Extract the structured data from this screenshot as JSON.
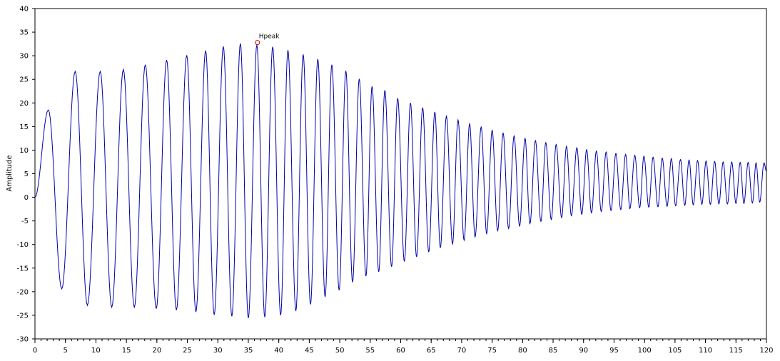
{
  "chart_data": {
    "type": "line",
    "title": "",
    "xlabel": "",
    "ylabel": "Amplitude",
    "xlim": [
      0,
      120
    ],
    "ylim": [
      -30,
      40
    ],
    "x_ticks": [
      0,
      5,
      10,
      15,
      20,
      25,
      30,
      35,
      40,
      45,
      50,
      55,
      60,
      65,
      70,
      75,
      80,
      85,
      90,
      95,
      100,
      105,
      110,
      115,
      120
    ],
    "y_ticks": [
      -30,
      -25,
      -20,
      -15,
      -10,
      -5,
      0,
      5,
      10,
      15,
      20,
      25,
      30,
      35,
      40
    ],
    "grid": false,
    "line_color": "#0000aa",
    "marker_color": "#cc0000",
    "series": [
      {
        "values_description_free": true,
        "peaks": [
          [
            2.2,
            18.5
          ],
          [
            6.6,
            26.7
          ],
          [
            10.7,
            26.7
          ],
          [
            14.5,
            27.1
          ],
          [
            18.1,
            28.1
          ],
          [
            21.6,
            29.1
          ],
          [
            24.9,
            30.1
          ],
          [
            28.0,
            31.1
          ],
          [
            30.9,
            32.0
          ],
          [
            33.7,
            32.6
          ],
          [
            36.4,
            32.3
          ],
          [
            39.0,
            31.9
          ],
          [
            41.5,
            31.2
          ],
          [
            44.0,
            30.3
          ],
          [
            46.4,
            29.3
          ],
          [
            48.7,
            28.1
          ],
          [
            51.0,
            26.8
          ],
          [
            53.2,
            25.1
          ],
          [
            55.3,
            23.5
          ],
          [
            57.4,
            22.7
          ],
          [
            59.5,
            21.0
          ],
          [
            61.6,
            20.0
          ],
          [
            63.6,
            19.0
          ],
          [
            65.6,
            18.1
          ],
          [
            67.5,
            17.2
          ],
          [
            69.4,
            16.4
          ],
          [
            71.3,
            15.6
          ],
          [
            73.2,
            14.9
          ],
          [
            75.0,
            14.2
          ],
          [
            76.8,
            13.6
          ],
          [
            78.6,
            13.0
          ],
          [
            80.4,
            12.5
          ],
          [
            82.1,
            12.0
          ],
          [
            83.8,
            11.6
          ],
          [
            85.5,
            11.2
          ],
          [
            87.2,
            10.8
          ],
          [
            88.9,
            10.5
          ],
          [
            90.5,
            10.1
          ],
          [
            92.1,
            9.8
          ],
          [
            93.7,
            9.6
          ],
          [
            95.3,
            9.3
          ],
          [
            96.9,
            9.1
          ],
          [
            98.4,
            8.9
          ],
          [
            99.9,
            8.7
          ],
          [
            101.4,
            8.5
          ],
          [
            102.9,
            8.3
          ],
          [
            104.4,
            8.2
          ],
          [
            105.9,
            8.0
          ],
          [
            107.3,
            7.9
          ],
          [
            108.7,
            7.8
          ],
          [
            110.1,
            7.7
          ],
          [
            111.5,
            7.6
          ],
          [
            112.9,
            7.5
          ],
          [
            114.3,
            7.5
          ],
          [
            115.7,
            7.4
          ],
          [
            117.0,
            7.4
          ],
          [
            118.3,
            7.3
          ],
          [
            119.6,
            7.3
          ]
        ],
        "troughs": [
          [
            0.0,
            0.0
          ],
          [
            4.4,
            -19.4
          ],
          [
            8.6,
            -22.9
          ],
          [
            12.6,
            -23.3
          ],
          [
            16.3,
            -23.3
          ],
          [
            19.9,
            -23.6
          ],
          [
            23.2,
            -23.9
          ],
          [
            26.4,
            -24.3
          ],
          [
            29.4,
            -24.9
          ],
          [
            32.3,
            -25.2
          ],
          [
            35.0,
            -25.6
          ],
          [
            37.7,
            -25.4
          ],
          [
            40.3,
            -25.0
          ],
          [
            42.8,
            -24.1
          ],
          [
            45.2,
            -22.7
          ],
          [
            47.6,
            -21.1
          ],
          [
            49.9,
            -19.7
          ],
          [
            52.1,
            -18.0
          ],
          [
            54.3,
            -16.7
          ],
          [
            56.4,
            -15.8
          ],
          [
            58.5,
            -14.7
          ],
          [
            60.6,
            -13.6
          ],
          [
            62.6,
            -12.6
          ],
          [
            64.6,
            -11.6
          ],
          [
            66.5,
            -10.7
          ],
          [
            68.5,
            -9.9
          ],
          [
            70.4,
            -9.1
          ],
          [
            72.2,
            -8.4
          ],
          [
            74.1,
            -7.7
          ],
          [
            75.9,
            -7.1
          ],
          [
            77.7,
            -6.6
          ],
          [
            79.5,
            -6.1
          ],
          [
            81.2,
            -5.6
          ],
          [
            83.0,
            -5.1
          ],
          [
            84.7,
            -4.7
          ],
          [
            86.4,
            -4.3
          ],
          [
            88.0,
            -3.9
          ],
          [
            89.7,
            -3.6
          ],
          [
            91.3,
            -3.3
          ],
          [
            92.9,
            -3.0
          ],
          [
            94.5,
            -2.8
          ],
          [
            96.1,
            -2.6
          ],
          [
            97.6,
            -2.4
          ],
          [
            99.2,
            -2.2
          ],
          [
            100.7,
            -2.1
          ],
          [
            102.2,
            -2.0
          ],
          [
            103.7,
            -1.9
          ],
          [
            105.1,
            -1.8
          ],
          [
            106.6,
            -1.7
          ],
          [
            108.0,
            -1.6
          ],
          [
            109.4,
            -1.5
          ],
          [
            110.8,
            -1.5
          ],
          [
            112.2,
            -1.4
          ],
          [
            113.6,
            -1.4
          ],
          [
            115.0,
            -1.3
          ],
          [
            116.3,
            -1.3
          ],
          [
            117.7,
            -1.2
          ],
          [
            118.9,
            -1.0
          ],
          [
            120.0,
            5.5
          ]
        ]
      }
    ],
    "annotations": [
      {
        "text": "Hpeak",
        "x": 36.5,
        "y": 32.8
      }
    ]
  }
}
